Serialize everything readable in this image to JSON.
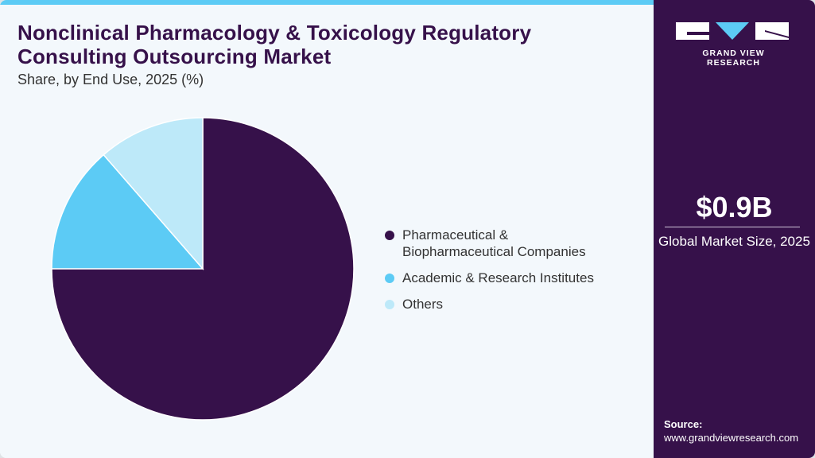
{
  "header": {
    "title": "Nonclinical Pharmacology & Toxicology Regulatory Consulting Outsourcing Market",
    "subtitle": "Share, by End Use, 2025 (%)"
  },
  "legend": [
    {
      "label": "Pharmaceutical & Biopharmaceutical Companies",
      "color": "#36114a"
    },
    {
      "label": "Academic & Research Institutes",
      "color": "#5ccbf5"
    },
    {
      "label": "Others",
      "color": "#bde9f9"
    }
  ],
  "sidebar": {
    "brand": "GRAND VIEW RESEARCH",
    "market_value": "$0.9B",
    "market_label": "Global Market Size, 2025",
    "source_label": "Source:",
    "source_url": "www.grandviewresearch.com"
  },
  "colors": {
    "accent": "#5ccbf5",
    "brand": "#36114a",
    "background": "#f3f8fc"
  },
  "chart_data": {
    "type": "pie",
    "title": "Nonclinical Pharmacology & Toxicology Regulatory Consulting Outsourcing Market",
    "subtitle": "Share, by End Use, 2025 (%)",
    "categories": [
      "Pharmaceutical & Biopharmaceutical Companies",
      "Academic & Research Institutes",
      "Others"
    ],
    "values": [
      75.0,
      13.6,
      11.4
    ],
    "colors": [
      "#36114a",
      "#5ccbf5",
      "#bde9f9"
    ],
    "start_angle": "12 o'clock, clockwise",
    "legend_position": "right"
  }
}
